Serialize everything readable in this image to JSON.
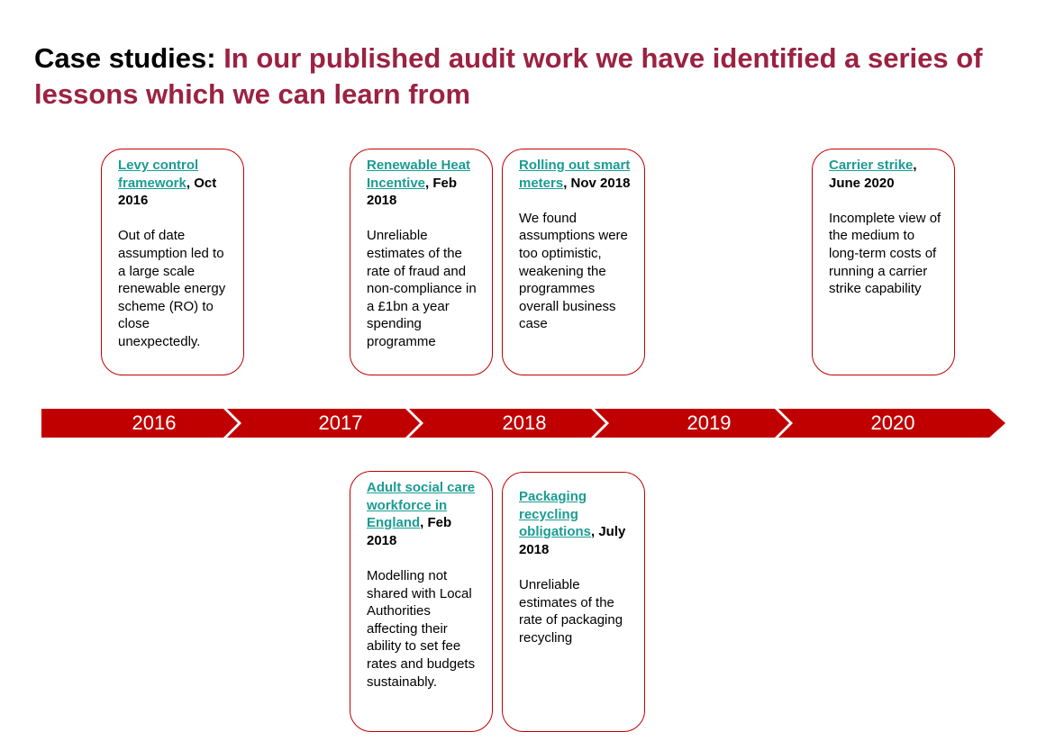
{
  "title": {
    "lead": "Case studies:",
    "rest": " In our published audit work we have identified a series of lessons which we can learn from"
  },
  "colors": {
    "accent": "#9b2242",
    "timeline": "#c00000",
    "link": "#1a9c93",
    "card_border": "#c00000"
  },
  "timeline": {
    "years": [
      "2016",
      "2017",
      "2018",
      "2019",
      "2020"
    ]
  },
  "cards": {
    "levy": {
      "link": "Levy control framework",
      "date": ", Oct 2016",
      "body": "Out of date assumption led to a large scale renewable energy scheme (RO) to close unexpectedly."
    },
    "rhi": {
      "link": "Renewable Heat Incentive",
      "date": ", Feb 2018",
      "body": "Unreliable estimates of the rate of fraud and non-compliance in a £1bn a year spending programme"
    },
    "smart": {
      "link": "Rolling out smart meters",
      "date": ", Nov 2018",
      "body": "We found assumptions were too optimistic, weakening the programmes overall business case"
    },
    "carrier": {
      "link": "Carrier strike",
      "date": ", June 2020",
      "body": "Incomplete view of the medium to long-term costs of running a carrier strike capability"
    },
    "adult": {
      "link": "Adult social care workforce in England",
      "date": ", Feb 2018",
      "body": "Modelling not shared with Local Authorities affecting their ability to set fee rates and budgets sustainably."
    },
    "packaging": {
      "link": "Packaging recycling obligations",
      "date": ", July 2018",
      "body": "Unreliable estimates of the rate of packaging recycling"
    }
  }
}
